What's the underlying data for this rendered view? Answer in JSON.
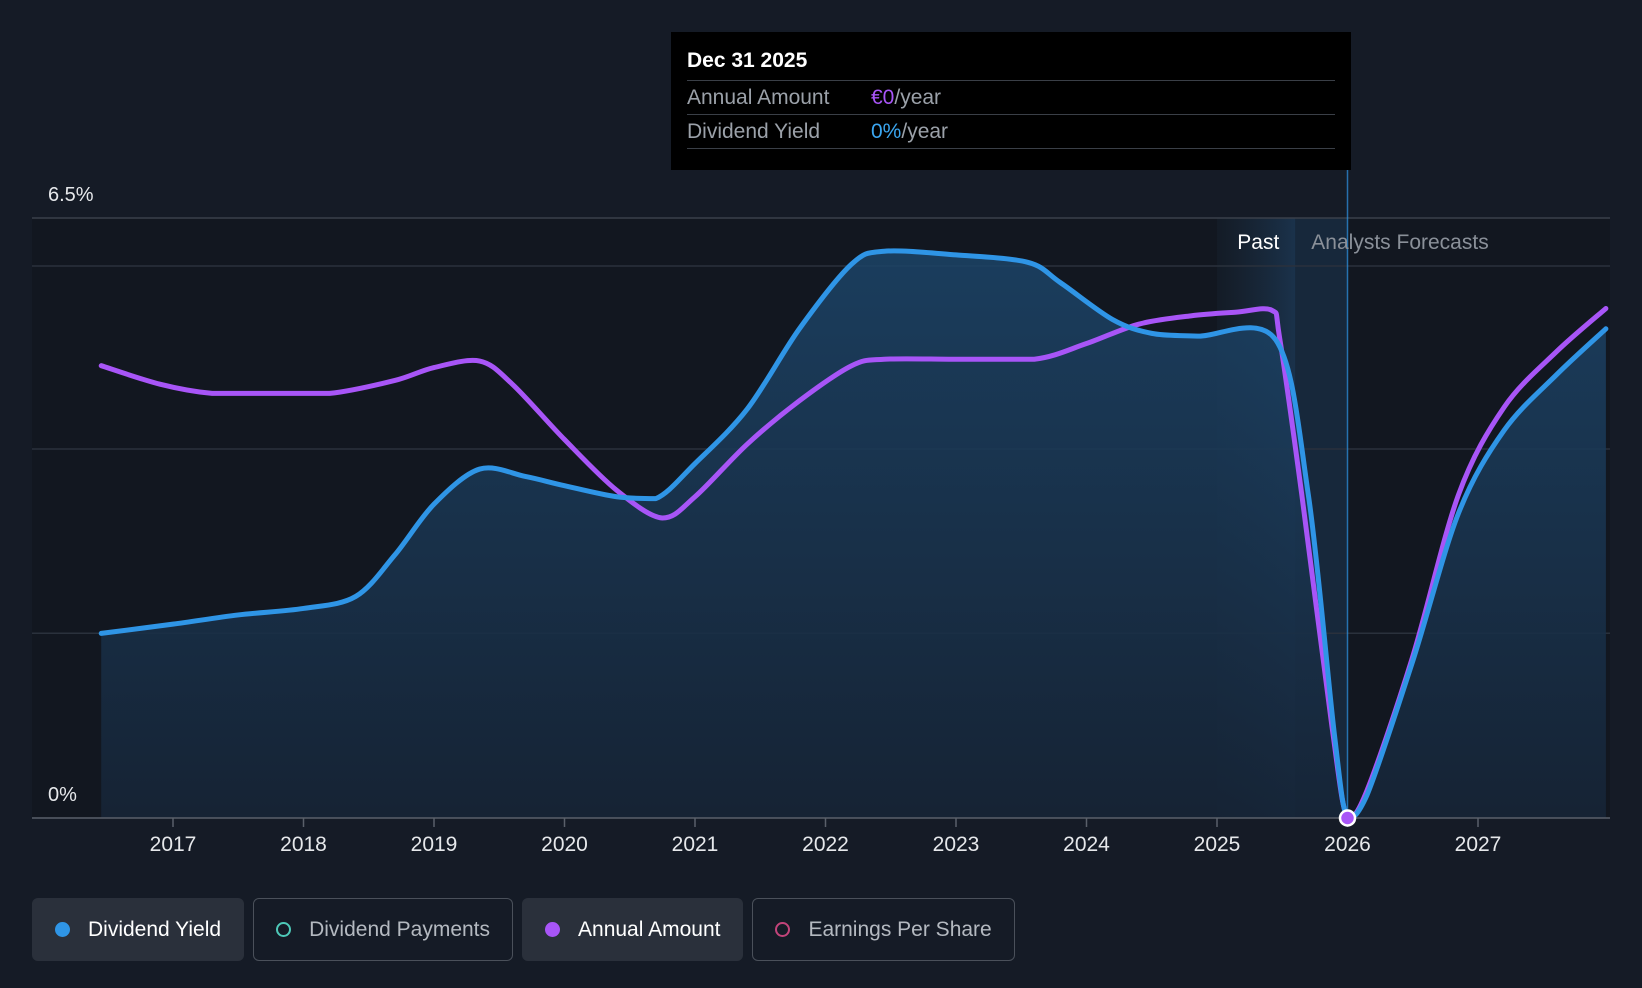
{
  "chart_data": {
    "type": "line",
    "x_ticks": [
      "2017",
      "2018",
      "2019",
      "2020",
      "2021",
      "2022",
      "2023",
      "2024",
      "2025",
      "2026",
      "2027"
    ],
    "y_ticks": [
      "0%",
      "6.5%"
    ],
    "ylim": [
      0,
      6.5
    ],
    "grid": "horizontal",
    "regions": {
      "past_label": "Past",
      "forecast_label": "Analysts Forecasts"
    },
    "series": [
      {
        "name": "Dividend Yield",
        "color": "#2f95e6",
        "filled": true,
        "points": [
          [
            2016.45,
            2.0
          ],
          [
            2017.0,
            2.1
          ],
          [
            2017.5,
            2.2
          ],
          [
            2018.0,
            2.27
          ],
          [
            2018.4,
            2.4
          ],
          [
            2018.7,
            2.85
          ],
          [
            2019.0,
            3.4
          ],
          [
            2019.35,
            3.78
          ],
          [
            2019.7,
            3.7
          ],
          [
            2020.0,
            3.6
          ],
          [
            2020.4,
            3.48
          ],
          [
            2020.7,
            3.46
          ],
          [
            2021.0,
            3.84
          ],
          [
            2021.4,
            4.43
          ],
          [
            2021.8,
            5.3
          ],
          [
            2022.2,
            6.0
          ],
          [
            2022.45,
            6.14
          ],
          [
            2023.0,
            6.1
          ],
          [
            2023.55,
            6.02
          ],
          [
            2023.8,
            5.8
          ],
          [
            2024.2,
            5.4
          ],
          [
            2024.5,
            5.25
          ],
          [
            2024.85,
            5.22
          ],
          [
            2025.45,
            5.18
          ],
          [
            2025.7,
            3.5
          ],
          [
            2025.9,
            0.9
          ],
          [
            2026.0,
            0.0
          ],
          [
            2026.15,
            0.25
          ],
          [
            2026.5,
            1.7
          ],
          [
            2026.85,
            3.3
          ],
          [
            2027.2,
            4.2
          ],
          [
            2027.6,
            4.8
          ],
          [
            2027.98,
            5.3
          ]
        ]
      },
      {
        "name": "Annual Amount",
        "color": "#a855f7",
        "filled": false,
        "points": [
          [
            2016.45,
            4.9
          ],
          [
            2016.9,
            4.7
          ],
          [
            2017.3,
            4.6
          ],
          [
            2017.7,
            4.6
          ],
          [
            2018.2,
            4.6
          ],
          [
            2018.7,
            4.74
          ],
          [
            2019.0,
            4.88
          ],
          [
            2019.35,
            4.95
          ],
          [
            2019.6,
            4.7
          ],
          [
            2020.0,
            4.1
          ],
          [
            2020.4,
            3.55
          ],
          [
            2020.75,
            3.25
          ],
          [
            2021.0,
            3.48
          ],
          [
            2021.4,
            4.05
          ],
          [
            2021.8,
            4.52
          ],
          [
            2022.2,
            4.9
          ],
          [
            2022.45,
            4.97
          ],
          [
            2023.0,
            4.97
          ],
          [
            2023.6,
            4.97
          ],
          [
            2024.0,
            5.14
          ],
          [
            2024.4,
            5.35
          ],
          [
            2024.8,
            5.44
          ],
          [
            2025.15,
            5.48
          ],
          [
            2025.42,
            5.5
          ],
          [
            2025.48,
            5.2
          ],
          [
            2025.65,
            3.5
          ],
          [
            2025.88,
            1.0
          ],
          [
            2026.0,
            0.0
          ],
          [
            2026.15,
            0.3
          ],
          [
            2026.5,
            1.75
          ],
          [
            2026.85,
            3.5
          ],
          [
            2027.2,
            4.45
          ],
          [
            2027.6,
            5.05
          ],
          [
            2027.98,
            5.52
          ]
        ]
      }
    ],
    "highlight": {
      "x": 2026.0,
      "y": 0.0
    }
  },
  "tooltip": {
    "date": "Dec 31 2025",
    "rows": [
      {
        "label": "Annual Amount",
        "value": "€0",
        "unit": "/year"
      },
      {
        "label": "Dividend Yield",
        "value": "0%",
        "unit": "/year"
      }
    ]
  },
  "legend": {
    "items": [
      {
        "label": "Dividend Yield",
        "color": "#2f95e6",
        "active": true
      },
      {
        "label": "Dividend Payments",
        "color": "#4ec9b8",
        "active": false
      },
      {
        "label": "Annual Amount",
        "color": "#a855f7",
        "active": true
      },
      {
        "label": "Earnings Per Share",
        "color": "#c2447a",
        "active": false
      }
    ]
  }
}
